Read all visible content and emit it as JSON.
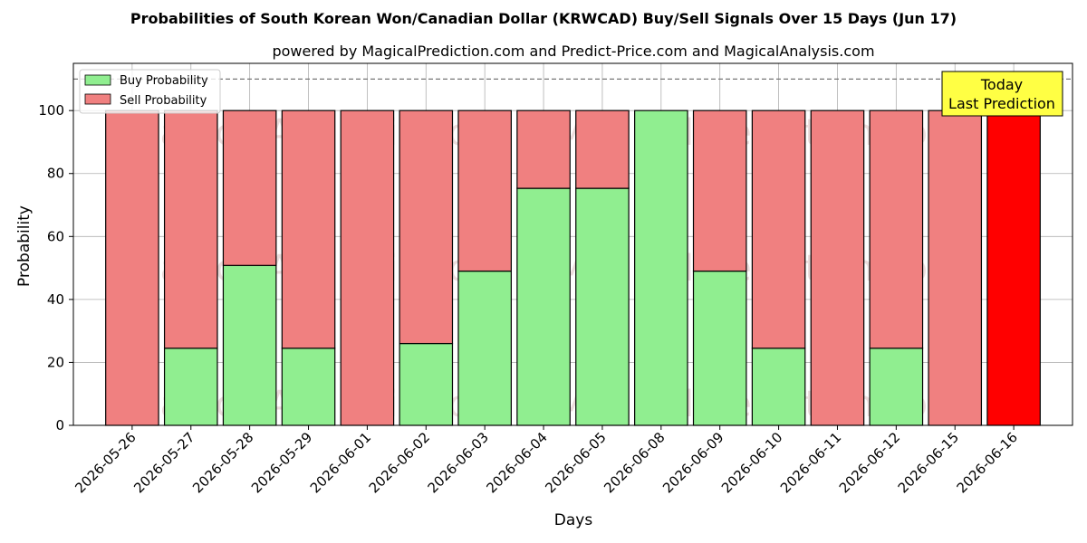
{
  "chart_data": {
    "type": "bar",
    "title": "Probabilities of South Korean Won/Canadian Dollar (KRWCAD) Buy/Sell Signals Over 15 Days (Jun 17)",
    "subtitle": "powered by MagicalPrediction.com and Predict-Price.com and MagicalAnalysis.com",
    "xlabel": "Days",
    "ylabel": "Probability",
    "ylim": [
      0,
      115
    ],
    "yticks": [
      0,
      20,
      40,
      60,
      80,
      100
    ],
    "reference_line": 110,
    "grid": true,
    "legend_position": "top-left",
    "categories": [
      "2026-05-26",
      "2026-05-27",
      "2026-05-28",
      "2026-05-29",
      "2026-06-01",
      "2026-06-02",
      "2026-06-03",
      "2026-06-04",
      "2026-06-05",
      "2026-06-08",
      "2026-06-09",
      "2026-06-10",
      "2026-06-11",
      "2026-06-12",
      "2026-06-15",
      "2026-06-16"
    ],
    "series": [
      {
        "name": "Buy Probability",
        "color": "#90ee90",
        "values": [
          0,
          24.5,
          50.8,
          24.5,
          0,
          26,
          49,
          75.3,
          75.3,
          100,
          49,
          24.5,
          0,
          24.5,
          0,
          0
        ]
      },
      {
        "name": "Sell Probability",
        "color": "#f08080",
        "values": [
          100,
          75.5,
          49.2,
          75.5,
          100,
          74,
          51,
          24.7,
          24.7,
          0,
          51,
          75.5,
          100,
          75.5,
          100,
          100
        ]
      }
    ],
    "highlight": {
      "index": 15,
      "color": "#ff0000"
    },
    "annotation": {
      "line1": "Today",
      "line2": "Last Prediction",
      "color": "#ffff44"
    },
    "watermarks": [
      "MagicalAnalysis.com",
      "MagicalPrediction.com"
    ]
  }
}
